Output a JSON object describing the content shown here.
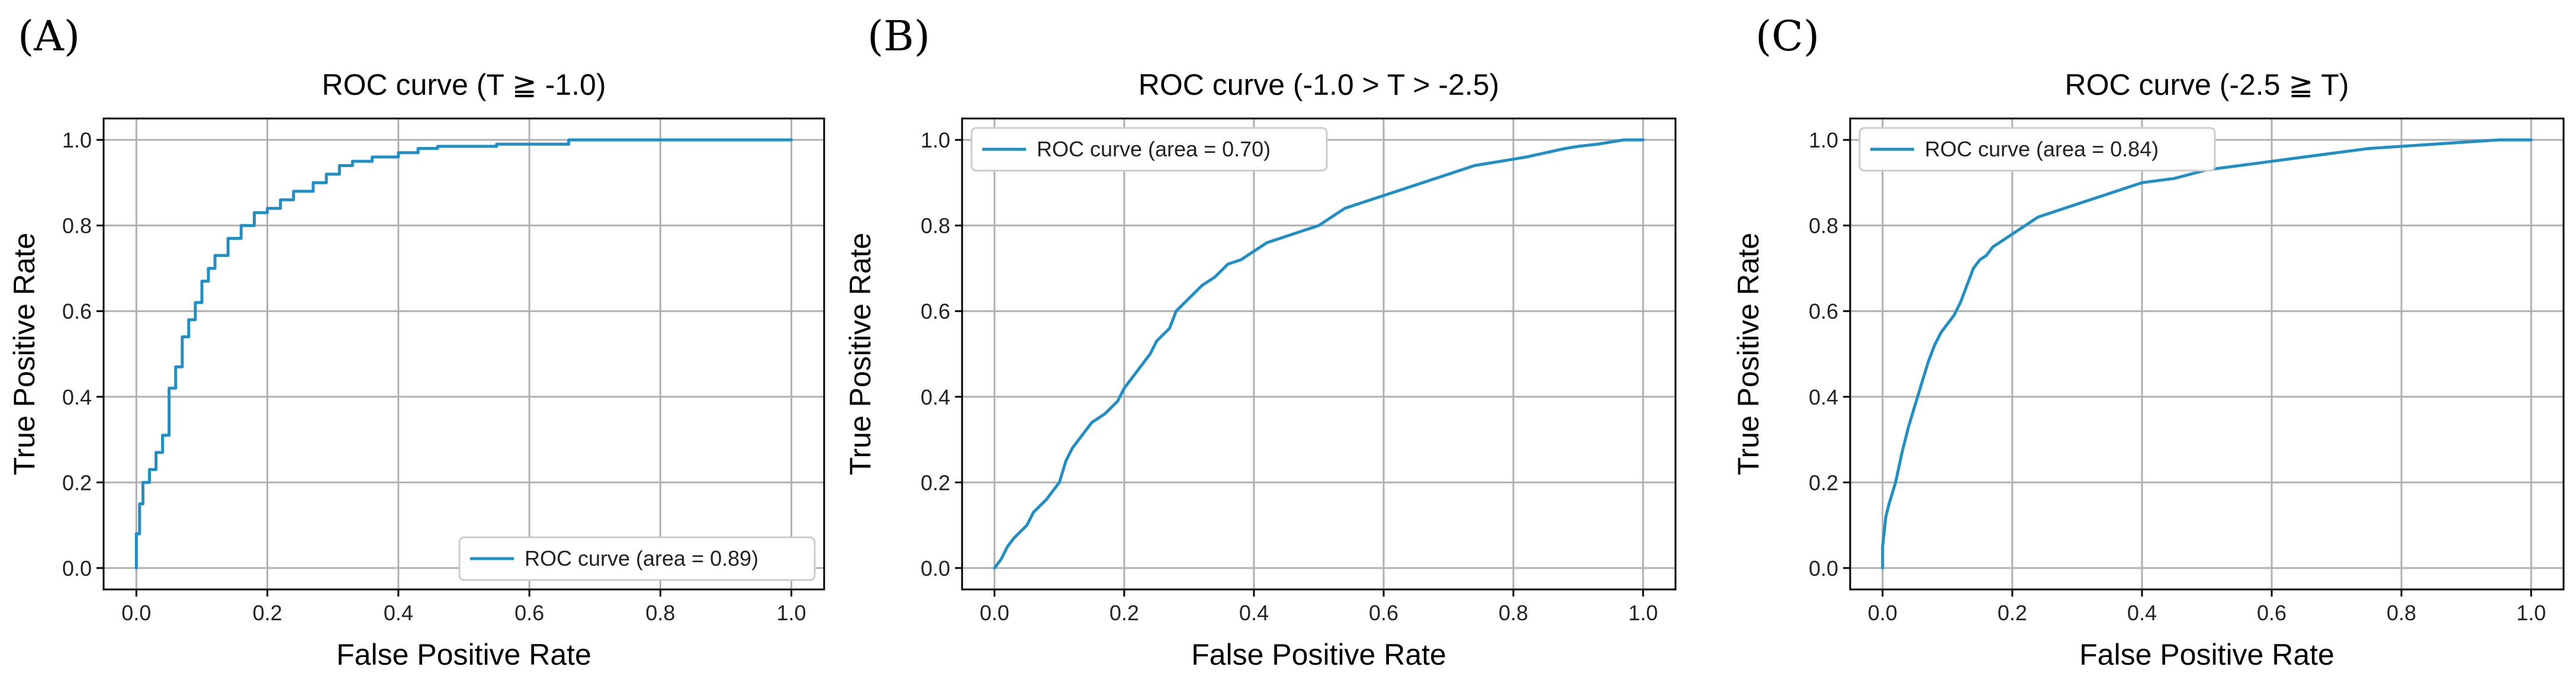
{
  "figure": {
    "line_color": "#1f8fc6",
    "panels": [
      {
        "letter": "(A)"
      },
      {
        "letter": "(B)"
      },
      {
        "letter": "(C)"
      }
    ]
  },
  "chart_data": [
    {
      "type": "line",
      "title": "ROC curve (T ≧ -1.0)",
      "xlabel": "False Positive Rate",
      "ylabel": "True Positive Rate",
      "xlim": [
        -0.05,
        1.05
      ],
      "ylim": [
        -0.05,
        1.05
      ],
      "xticks": [
        0.0,
        0.2,
        0.4,
        0.6,
        0.8,
        1.0
      ],
      "yticks": [
        0.0,
        0.2,
        0.4,
        0.6,
        0.8,
        1.0
      ],
      "xtick_labels": [
        "0.0",
        "0.2",
        "0.4",
        "0.6",
        "0.8",
        "1.0"
      ],
      "ytick_labels": [
        "0.0",
        "0.2",
        "0.4",
        "0.6",
        "0.8",
        "1.0"
      ],
      "grid": true,
      "legend_position": "lower-right",
      "series": [
        {
          "name": "ROC curve (area = 0.89)",
          "x": [
            0,
            0,
            0.005,
            0.005,
            0.01,
            0.01,
            0.02,
            0.02,
            0.03,
            0.03,
            0.04,
            0.04,
            0.05,
            0.05,
            0.06,
            0.06,
            0.07,
            0.07,
            0.08,
            0.08,
            0.09,
            0.09,
            0.1,
            0.1,
            0.11,
            0.11,
            0.12,
            0.12,
            0.14,
            0.14,
            0.16,
            0.16,
            0.18,
            0.18,
            0.2,
            0.2,
            0.22,
            0.22,
            0.24,
            0.24,
            0.27,
            0.27,
            0.29,
            0.29,
            0.31,
            0.31,
            0.33,
            0.33,
            0.36,
            0.36,
            0.4,
            0.4,
            0.43,
            0.43,
            0.46,
            0.46,
            0.55,
            0.55,
            0.66,
            0.66,
            1.0
          ],
          "y": [
            0,
            0.08,
            0.08,
            0.15,
            0.15,
            0.2,
            0.2,
            0.23,
            0.23,
            0.27,
            0.27,
            0.31,
            0.31,
            0.42,
            0.42,
            0.47,
            0.47,
            0.54,
            0.54,
            0.58,
            0.58,
            0.62,
            0.62,
            0.67,
            0.67,
            0.7,
            0.7,
            0.73,
            0.73,
            0.77,
            0.77,
            0.8,
            0.8,
            0.83,
            0.83,
            0.84,
            0.84,
            0.86,
            0.86,
            0.88,
            0.88,
            0.9,
            0.9,
            0.92,
            0.92,
            0.94,
            0.94,
            0.95,
            0.95,
            0.96,
            0.96,
            0.97,
            0.97,
            0.98,
            0.98,
            0.985,
            0.985,
            0.99,
            0.99,
            1.0,
            1.0
          ]
        }
      ]
    },
    {
      "type": "line",
      "title": "ROC curve (-1.0 > T > -2.5)",
      "xlabel": "False Positive Rate",
      "ylabel": "True Positive Rate",
      "xlim": [
        -0.05,
        1.05
      ],
      "ylim": [
        -0.05,
        1.05
      ],
      "xticks": [
        0.0,
        0.2,
        0.4,
        0.6,
        0.8,
        1.0
      ],
      "yticks": [
        0.0,
        0.2,
        0.4,
        0.6,
        0.8,
        1.0
      ],
      "xtick_labels": [
        "0.0",
        "0.2",
        "0.4",
        "0.6",
        "0.8",
        "1.0"
      ],
      "ytick_labels": [
        "0.0",
        "0.2",
        "0.4",
        "0.6",
        "0.8",
        "1.0"
      ],
      "grid": true,
      "legend_position": "top-left",
      "series": [
        {
          "name": "ROC curve (area = 0.70)",
          "x": [
            0,
            0.01,
            0.02,
            0.03,
            0.05,
            0.06,
            0.08,
            0.1,
            0.11,
            0.12,
            0.14,
            0.15,
            0.17,
            0.19,
            0.2,
            0.22,
            0.24,
            0.25,
            0.27,
            0.28,
            0.3,
            0.32,
            0.34,
            0.36,
            0.38,
            0.4,
            0.42,
            0.44,
            0.46,
            0.48,
            0.5,
            0.52,
            0.54,
            0.56,
            0.58,
            0.6,
            0.62,
            0.64,
            0.66,
            0.68,
            0.7,
            0.72,
            0.74,
            0.76,
            0.78,
            0.8,
            0.82,
            0.85,
            0.88,
            0.9,
            0.93,
            0.95,
            0.97,
            1.0
          ],
          "y": [
            0,
            0.02,
            0.05,
            0.07,
            0.1,
            0.13,
            0.16,
            0.2,
            0.25,
            0.28,
            0.32,
            0.34,
            0.36,
            0.39,
            0.42,
            0.46,
            0.5,
            0.53,
            0.56,
            0.6,
            0.63,
            0.66,
            0.68,
            0.71,
            0.72,
            0.74,
            0.76,
            0.77,
            0.78,
            0.79,
            0.8,
            0.82,
            0.84,
            0.85,
            0.86,
            0.87,
            0.88,
            0.89,
            0.9,
            0.91,
            0.92,
            0.93,
            0.94,
            0.945,
            0.95,
            0.955,
            0.96,
            0.97,
            0.98,
            0.985,
            0.99,
            0.995,
            1.0,
            1.0
          ]
        }
      ]
    },
    {
      "type": "line",
      "title": "ROC curve (-2.5 ≧ T)",
      "xlabel": "False Positive Rate",
      "ylabel": "True Positive Rate",
      "xlim": [
        -0.05,
        1.05
      ],
      "ylim": [
        -0.05,
        1.05
      ],
      "xticks": [
        0.0,
        0.2,
        0.4,
        0.6,
        0.8,
        1.0
      ],
      "yticks": [
        0.0,
        0.2,
        0.4,
        0.6,
        0.8,
        1.0
      ],
      "xtick_labels": [
        "0.0",
        "0.2",
        "0.4",
        "0.6",
        "0.8",
        "1.0"
      ],
      "ytick_labels": [
        "0.0",
        "0.2",
        "0.4",
        "0.6",
        "0.8",
        "1.0"
      ],
      "grid": true,
      "legend_position": "top-left",
      "series": [
        {
          "name": "ROC curve (area = 0.84)",
          "x": [
            0,
            0,
            0.005,
            0.01,
            0.02,
            0.03,
            0.04,
            0.05,
            0.06,
            0.07,
            0.08,
            0.09,
            0.1,
            0.11,
            0.12,
            0.13,
            0.14,
            0.15,
            0.16,
            0.17,
            0.18,
            0.19,
            0.2,
            0.22,
            0.24,
            0.26,
            0.28,
            0.3,
            0.32,
            0.34,
            0.36,
            0.38,
            0.4,
            0.45,
            0.5,
            0.55,
            0.6,
            0.65,
            0.7,
            0.75,
            0.8,
            0.85,
            0.9,
            0.95,
            1.0
          ],
          "y": [
            0,
            0.05,
            0.12,
            0.15,
            0.2,
            0.27,
            0.33,
            0.38,
            0.43,
            0.48,
            0.52,
            0.55,
            0.57,
            0.59,
            0.62,
            0.66,
            0.7,
            0.72,
            0.73,
            0.75,
            0.76,
            0.77,
            0.78,
            0.8,
            0.82,
            0.83,
            0.84,
            0.85,
            0.86,
            0.87,
            0.88,
            0.89,
            0.9,
            0.91,
            0.93,
            0.94,
            0.95,
            0.96,
            0.97,
            0.98,
            0.985,
            0.99,
            0.995,
            1.0,
            1.0
          ]
        }
      ]
    }
  ]
}
